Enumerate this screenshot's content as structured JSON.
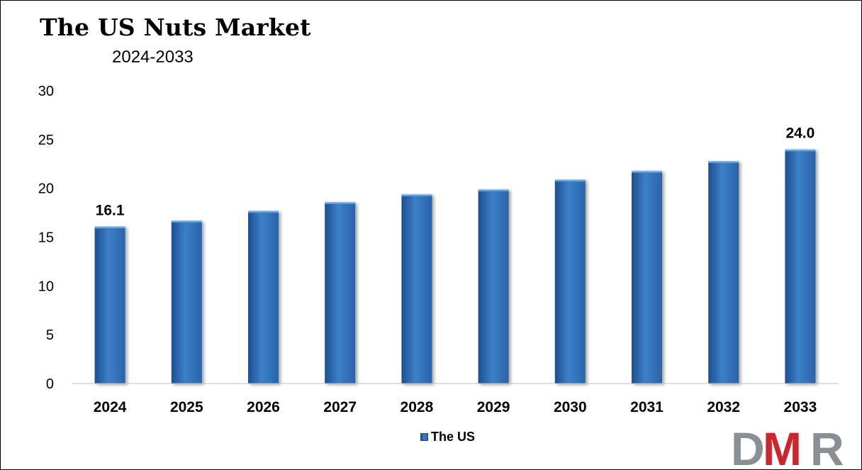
{
  "chart_data": {
    "type": "bar",
    "title": "The US Nuts Market",
    "subtitle": "2024-2033",
    "categories": [
      "2024",
      "2025",
      "2026",
      "2027",
      "2028",
      "2029",
      "2030",
      "2031",
      "2032",
      "2033"
    ],
    "series": [
      {
        "name": "The US",
        "values": [
          16.1,
          16.7,
          17.7,
          18.6,
          19.4,
          19.9,
          20.9,
          21.8,
          22.8,
          24.0
        ],
        "color": "#2e6db4"
      }
    ],
    "data_labels": [
      {
        "category": "2024",
        "text": "16.1"
      },
      {
        "category": "2033",
        "text": "24.0"
      }
    ],
    "ylim": [
      0,
      30
    ],
    "yticks": [
      "0",
      "5",
      "10",
      "15",
      "20",
      "25",
      "30"
    ],
    "xlabel": "",
    "ylabel": "",
    "grid": false,
    "legend_position": "bottom"
  },
  "logo": {
    "text": "DMR",
    "colors": {
      "d": "#8a8f94",
      "m": "#c8282d",
      "r": "#8a8f94"
    }
  }
}
